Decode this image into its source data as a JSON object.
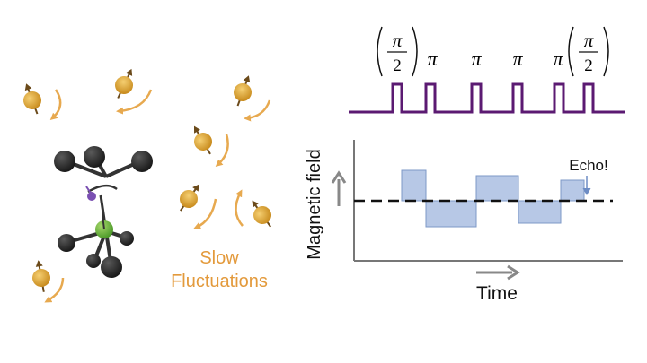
{
  "left_panel": {
    "caption_line1": "Slow",
    "caption_line2": "Fluctuations"
  },
  "pulse_sequence": {
    "half_pi_label": "π",
    "half_pi_denominator": "2",
    "pi_label": "π",
    "pulses": [
      "(π/2)",
      "π",
      "π",
      "π",
      "π",
      "(π/2)"
    ]
  },
  "field_plot": {
    "y_axis_label": "Magnetic field",
    "x_axis_label": "Time",
    "echo_label": "Echo!"
  },
  "colors": {
    "spin": "#e3a83a",
    "arrow": "#e7a94f",
    "pulse": "#5b1a72",
    "bar_fill": "#b7c8e6",
    "bar_stroke": "#7e98c7",
    "axis": "#777777",
    "central_atom": "#6cb33f",
    "electron": "#7a4fb2",
    "ligand": "#333333",
    "caption": "#e39a3c",
    "echo_arrow": "#6d8cc4"
  }
}
